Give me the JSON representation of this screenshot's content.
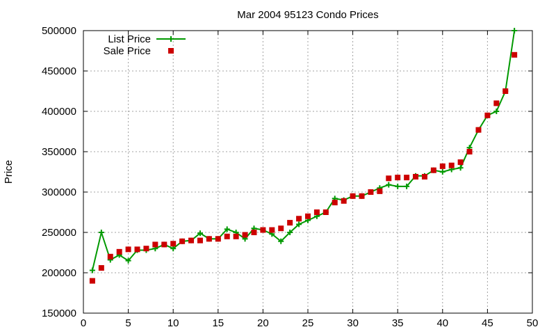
{
  "chart_data": {
    "type": "line",
    "title": "Mar 2004 95123 Condo Prices",
    "xlabel": "",
    "ylabel": "Price",
    "xlim": [
      0,
      50
    ],
    "ylim": [
      150000,
      500000
    ],
    "x_ticks": [
      0,
      5,
      10,
      15,
      20,
      25,
      30,
      35,
      40,
      45,
      50
    ],
    "y_ticks": [
      150000,
      200000,
      250000,
      300000,
      350000,
      400000,
      450000,
      500000
    ],
    "grid": true,
    "legend_position": "top-left",
    "series": [
      {
        "name": "List Price",
        "style": "line-with-plus-markers",
        "color": "#009900",
        "x": [
          1,
          2,
          3,
          4,
          5,
          6,
          7,
          8,
          9,
          10,
          11,
          12,
          13,
          14,
          15,
          16,
          17,
          18,
          19,
          20,
          21,
          22,
          23,
          24,
          25,
          26,
          27,
          28,
          29,
          30,
          31,
          32,
          33,
          34,
          35,
          36,
          37,
          38,
          39,
          40,
          41,
          42,
          43,
          44,
          45,
          46,
          47,
          48
        ],
        "values": [
          203000,
          250000,
          216000,
          222000,
          215000,
          228000,
          228000,
          230000,
          235000,
          230000,
          239000,
          240000,
          249000,
          242000,
          242000,
          254000,
          250000,
          242000,
          255000,
          253000,
          248000,
          239000,
          250000,
          260000,
          265000,
          270000,
          275000,
          292000,
          290000,
          295000,
          295000,
          300000,
          305000,
          309000,
          307000,
          307000,
          320000,
          320000,
          327000,
          325000,
          328000,
          330000,
          355000,
          377000,
          395000,
          400000,
          425000,
          500000
        ]
      },
      {
        "name": "Sale Price",
        "style": "square-markers",
        "color": "#cc0000",
        "x": [
          1,
          2,
          3,
          4,
          5,
          6,
          7,
          8,
          9,
          10,
          11,
          12,
          13,
          14,
          15,
          16,
          17,
          18,
          19,
          20,
          21,
          22,
          23,
          24,
          25,
          26,
          27,
          28,
          29,
          30,
          31,
          32,
          33,
          34,
          35,
          36,
          37,
          38,
          39,
          40,
          41,
          42,
          43,
          44,
          45,
          46,
          47,
          48
        ],
        "values": [
          190000,
          206000,
          220000,
          226000,
          229000,
          229000,
          230000,
          235000,
          235000,
          236000,
          239000,
          240000,
          240000,
          242000,
          242000,
          245000,
          245000,
          247000,
          250000,
          253000,
          253000,
          255000,
          262000,
          267000,
          270000,
          275000,
          275000,
          287000,
          289000,
          295000,
          295000,
          300000,
          301000,
          317000,
          318000,
          318000,
          319000,
          319000,
          327000,
          332000,
          333000,
          337000,
          350000,
          377000,
          395000,
          410000,
          425000,
          470000
        ]
      }
    ]
  }
}
